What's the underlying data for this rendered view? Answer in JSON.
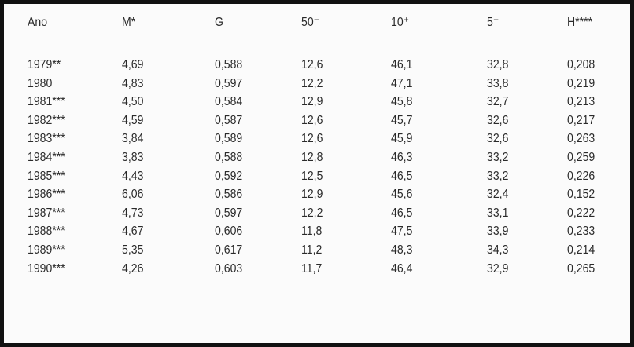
{
  "table": {
    "header": [
      "Ano",
      "M*",
      "G",
      "50⁻",
      "10⁺",
      "5⁺",
      "H****"
    ],
    "rows": [
      [
        "1979**",
        "4,69",
        "0,588",
        "12,6",
        "46,1",
        "32,8",
        "0,208"
      ],
      [
        "1980",
        "4,83",
        "0,597",
        "12,2",
        "47,1",
        "33,8",
        "0,219"
      ],
      [
        "1981***",
        "4,50",
        "0,584",
        "12,9",
        "45,8",
        "32,7",
        "0,213"
      ],
      [
        "1982***",
        "4,59",
        "0,587",
        "12,6",
        "45,7",
        "32,6",
        "0,217"
      ],
      [
        "1983***",
        "3,84",
        "0,589",
        "12,6",
        "45,9",
        "32,6",
        "0,263"
      ],
      [
        "1984***",
        "3,83",
        "0,588",
        "12,8",
        "46,3",
        "33,2",
        "0,259"
      ],
      [
        "1985***",
        "4,43",
        "0,592",
        "12,5",
        "46,5",
        "33,2",
        "0,226"
      ],
      [
        "1986***",
        "6,06",
        "0,586",
        "12,9",
        "45,6",
        "32,4",
        "0,152"
      ],
      [
        "1987***",
        "4,73",
        "0,597",
        "12,2",
        "46,5",
        "33,1",
        "0,222"
      ],
      [
        "1988***",
        "4,67",
        "0,606",
        "11,8",
        "47,5",
        "33,9",
        "0,233"
      ],
      [
        "1989***",
        "5,35",
        "0,617",
        "11,2",
        "48,3",
        "34,3",
        "0,214"
      ],
      [
        "1990***",
        "4,26",
        "0,603",
        "11,7",
        "46,4",
        "32,9",
        "0,265"
      ]
    ]
  }
}
